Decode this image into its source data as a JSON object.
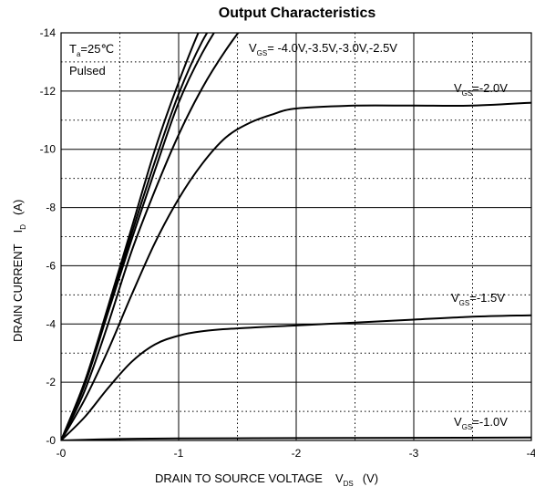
{
  "chart_data": {
    "type": "line",
    "title": "Output Characteristics",
    "xlabel": "DRAIN TO SOURCE VOLTAGE",
    "xlabel_symbol": "V",
    "xlabel_sub": "DS",
    "xlabel_unit": "(V)",
    "ylabel": "DRAIN CURRENT",
    "ylabel_symbol": "I",
    "ylabel_sub": "D",
    "ylabel_unit": "(A)",
    "xlim": [
      0,
      -4
    ],
    "ylim": [
      0,
      -14
    ],
    "x_ticks": [
      "-0",
      "-1",
      "-2",
      "-3",
      "-4"
    ],
    "y_ticks": [
      "-0",
      "-2",
      "-4",
      "-6",
      "-8",
      "-10",
      "-12",
      "-14"
    ],
    "grid": {
      "major_solid": true,
      "minor_dotted": true
    },
    "conditions": {
      "temp_label": "T",
      "temp_sub": "a",
      "temp_value": "=25℃",
      "mode": "Pulsed"
    },
    "series": [
      {
        "name": "VGS=-4.0V",
        "x": [
          0,
          -0.2,
          -0.4,
          -0.6,
          -0.8,
          -1.0,
          -1.2,
          -1.3
        ],
        "y": [
          0,
          -2.0,
          -4.6,
          -7.3,
          -10.0,
          -12.3,
          -14.3,
          -15.0
        ]
      },
      {
        "name": "VGS=-3.5V",
        "x": [
          0,
          -0.2,
          -0.4,
          -0.6,
          -0.8,
          -1.0,
          -1.2,
          -1.4
        ],
        "y": [
          0,
          -2.0,
          -4.5,
          -7.1,
          -9.6,
          -11.9,
          -13.7,
          -15.0
        ]
      },
      {
        "name": "VGS=-3.0V",
        "x": [
          0,
          -0.2,
          -0.4,
          -0.6,
          -0.8,
          -1.0,
          -1.2,
          -1.4,
          -1.5
        ],
        "y": [
          0,
          -1.9,
          -4.4,
          -6.9,
          -9.3,
          -11.6,
          -13.3,
          -14.6,
          -15.0
        ]
      },
      {
        "name": "VGS=-2.5V",
        "x": [
          0,
          -0.2,
          -0.4,
          -0.6,
          -0.8,
          -1.0,
          -1.2,
          -1.4,
          -1.6,
          -1.7
        ],
        "y": [
          0,
          -1.7,
          -4.0,
          -6.5,
          -8.6,
          -10.5,
          -12.1,
          -13.4,
          -14.5,
          -15.0
        ]
      },
      {
        "name": "VGS=-2.0V",
        "x": [
          0,
          -0.2,
          -0.4,
          -0.6,
          -0.8,
          -1.0,
          -1.2,
          -1.4,
          -1.6,
          -1.8,
          -2.0,
          -2.5,
          -3.0,
          -3.5,
          -4.0
        ],
        "y": [
          0,
          -1.4,
          -3.1,
          -5.0,
          -6.8,
          -8.3,
          -9.5,
          -10.4,
          -10.9,
          -11.2,
          -11.4,
          -11.5,
          -11.5,
          -11.5,
          -11.6
        ]
      },
      {
        "name": "VGS=-1.5V",
        "x": [
          0,
          -0.2,
          -0.4,
          -0.6,
          -0.8,
          -1.0,
          -1.2,
          -1.5,
          -2.0,
          -2.5,
          -3.0,
          -3.5,
          -4.0
        ],
        "y": [
          0,
          -0.8,
          -1.8,
          -2.7,
          -3.3,
          -3.6,
          -3.75,
          -3.85,
          -3.95,
          -4.05,
          -4.15,
          -4.25,
          -4.3
        ]
      },
      {
        "name": "VGS=-1.0V",
        "x": [
          0,
          -0.5,
          -1.0,
          -2.0,
          -3.0,
          -4.0
        ],
        "y": [
          0,
          -0.05,
          -0.07,
          -0.08,
          -0.09,
          -0.1
        ]
      }
    ],
    "labels": [
      {
        "main": "V",
        "sub": "GS",
        "rest": "= -4.0V,-3.5V,-3.0V,-2.5V"
      },
      {
        "main": "V",
        "sub": "GS",
        "rest": "=-2.0V"
      },
      {
        "main": "V",
        "sub": "GS",
        "rest": "=-1.5V"
      },
      {
        "main": "V",
        "sub": "GS",
        "rest": "=-1.0V"
      }
    ]
  }
}
